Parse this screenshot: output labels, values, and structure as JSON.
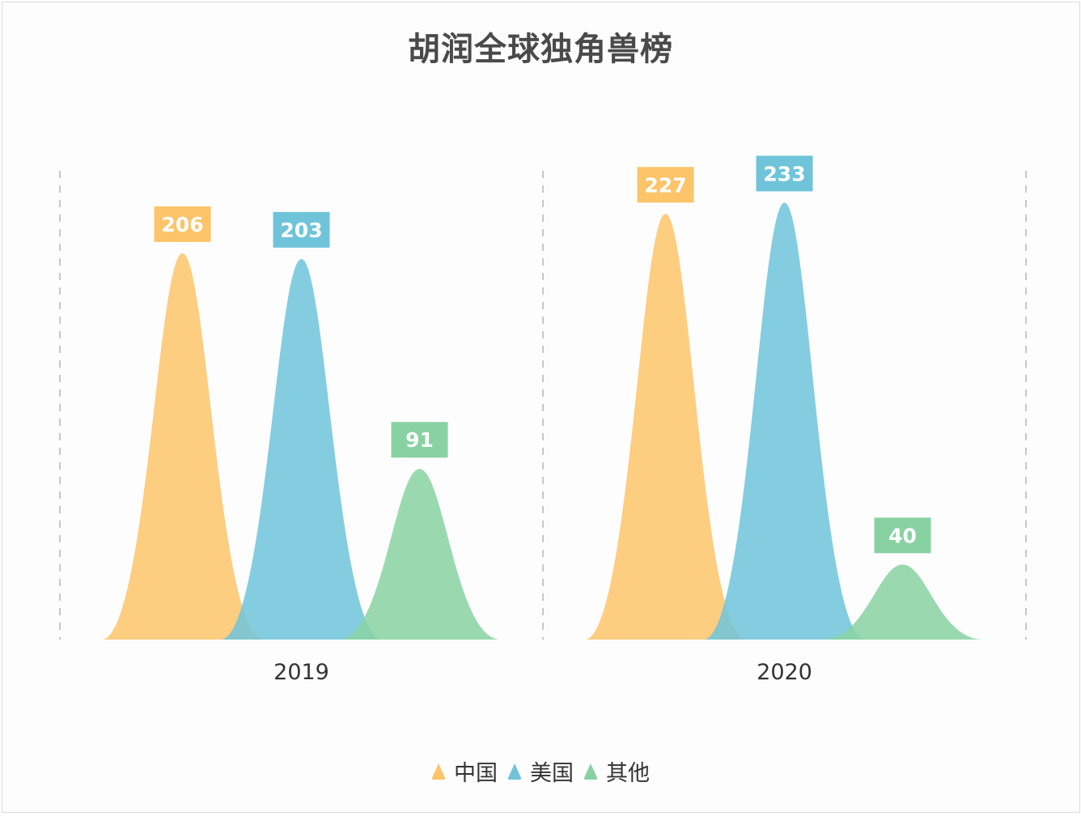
{
  "chart_data": {
    "type": "bar",
    "subtype": "pictorial-peak",
    "title": "胡润全球独角兽榜",
    "categories": [
      "2019",
      "2020"
    ],
    "series": [
      {
        "name": "中国",
        "values": [
          206,
          227
        ],
        "color": "#fdc46a"
      },
      {
        "name": "美国",
        "values": [
          203,
          233
        ],
        "color": "#6fc4da"
      },
      {
        "name": "其他",
        "values": [
          91,
          40
        ],
        "color": "#88d2a2"
      }
    ],
    "ylim": [
      0,
      250
    ],
    "data_labels": true,
    "legend_position": "bottom",
    "grid": false,
    "category_separators": "dashed"
  }
}
